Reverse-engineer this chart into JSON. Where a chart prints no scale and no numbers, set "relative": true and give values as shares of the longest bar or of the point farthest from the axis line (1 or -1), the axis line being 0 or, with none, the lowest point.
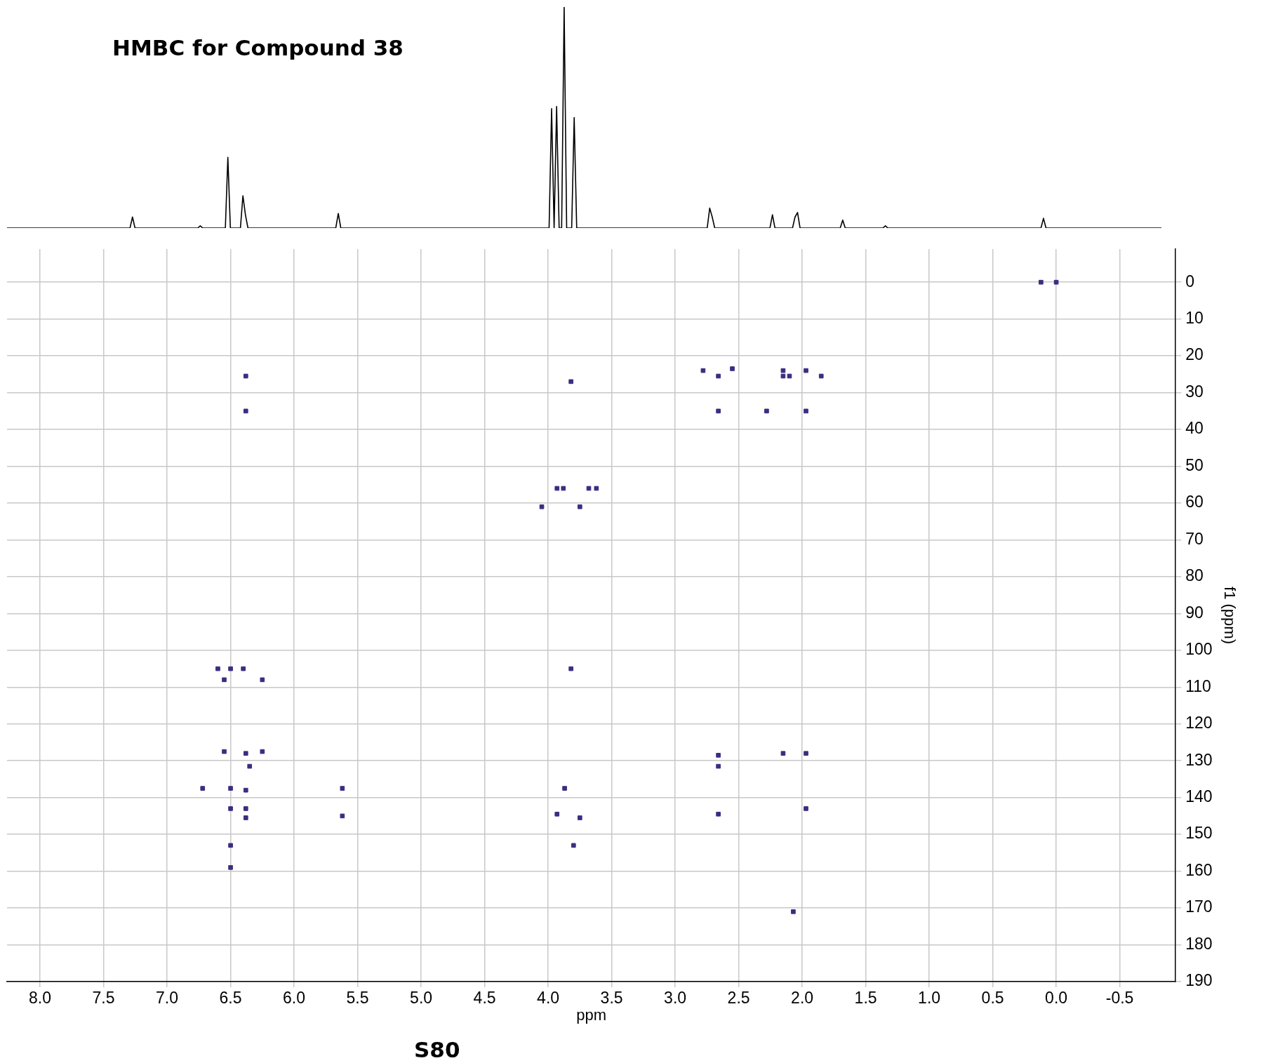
{
  "chart_data": [
    {
      "type": "line",
      "title": "HMBC for Compound 38",
      "relative": true,
      "grid": false,
      "legend": false,
      "marker": "none",
      "color": "#000000",
      "categories": [
        null,
        null,
        null,
        null,
        null,
        null,
        null,
        null,
        null,
        null,
        null,
        null,
        null,
        null,
        null,
        null,
        null,
        null,
        null,
        null,
        null,
        null,
        null,
        null,
        null,
        null,
        null,
        null,
        null,
        null,
        null,
        null,
        null,
        null,
        null,
        null,
        null,
        null,
        null,
        null,
        null,
        null,
        null,
        null,
        null,
        null,
        null,
        null,
        null,
        null,
        null,
        null,
        null,
        null,
        null,
        null,
        null,
        null,
        null,
        null,
        null,
        null,
        null,
        null,
        null,
        null,
        null,
        null,
        null,
        null,
        null,
        null,
        null,
        null,
        null,
        null,
        null,
        null,
        null,
        null,
        null,
        null,
        null,
        null,
        null,
        null,
        null,
        null,
        null,
        null,
        null,
        null,
        null,
        null,
        null,
        null,
        null,
        null,
        null,
        null,
        null,
        null,
        null,
        null,
        null,
        null,
        null,
        null,
        null,
        null,
        null,
        null,
        null,
        null,
        null,
        null,
        null,
        null,
        null,
        null,
        null,
        null,
        null,
        null,
        null,
        null,
        null,
        null,
        null,
        null,
        null,
        null,
        null,
        null,
        null,
        null,
        null,
        null,
        null,
        null,
        null,
        null,
        null,
        null,
        null,
        null,
        null,
        null,
        null,
        null,
        null,
        null,
        null,
        null,
        null,
        null,
        null,
        null,
        null,
        null,
        null,
        null,
        null,
        null,
        null,
        null,
        null,
        null,
        null,
        null,
        null,
        null,
        null,
        null,
        null,
        null,
        null,
        null,
        null,
        null,
        null,
        null,
        null,
        null,
        null,
        null,
        null,
        null,
        null,
        null,
        null,
        null,
        null,
        null,
        null,
        null,
        null,
        null,
        null,
        null,
        null,
        null,
        null,
        null,
        null,
        null,
        null,
        null,
        null,
        null,
        null,
        null,
        null,
        null,
        null,
        null,
        null,
        null,
        null,
        null,
        null,
        null,
        null,
        null,
        null,
        null,
        null,
        null,
        null,
        null,
        null,
        null,
        null,
        null,
        null,
        null,
        null,
        null,
        null,
        null,
        null,
        null,
        null,
        null,
        null,
        null,
        null,
        null,
        null,
        null,
        null,
        null,
        null,
        null,
        null,
        null,
        null,
        null,
        null,
        null,
        null,
        null,
        null,
        null,
        null,
        null,
        null,
        null,
        null,
        null,
        null,
        null,
        null,
        null,
        null,
        null,
        null,
        null,
        null,
        null,
        null,
        null,
        null,
        null,
        null,
        null,
        null,
        null,
        null,
        null,
        null,
        null,
        null,
        null,
        null,
        null,
        null,
        null,
        null,
        null,
        null,
        null,
        null,
        null,
        null,
        null,
        null,
        null,
        null,
        null,
        null,
        null,
        null,
        null,
        null,
        null,
        null,
        null,
        null,
        null,
        null,
        null,
        null,
        null,
        null,
        null,
        null,
        null,
        null,
        null,
        null,
        null,
        null,
        null,
        null,
        null,
        null,
        null,
        null,
        null,
        null,
        null,
        null,
        null,
        null,
        null,
        null,
        null,
        null,
        null,
        null,
        null,
        null,
        null,
        null,
        null,
        null,
        null,
        null,
        null,
        null,
        null,
        null,
        null,
        null,
        null,
        null,
        null,
        null,
        null,
        null,
        null,
        null,
        null,
        null,
        null,
        null,
        null,
        null,
        null,
        null,
        null,
        null,
        null,
        null,
        null,
        null,
        null,
        null,
        null,
        null,
        null,
        null,
        null,
        null,
        null,
        null,
        null,
        null,
        null,
        null,
        null,
        null,
        null,
        null,
        null,
        null,
        null,
        null,
        null,
        null,
        null,
        null,
        null,
        null,
        null,
        null,
        null,
        null,
        null,
        null,
        null,
        null,
        null,
        null,
        null,
        null,
        null,
        null,
        null,
        null,
        null,
        null,
        null,
        null,
        null,
        null,
        null,
        null,
        null,
        null,
        null,
        null,
        null,
        null,
        null,
        null,
        null,
        null,
        null,
        null,
        null,
        null,
        null,
        null,
        null,
        null,
        null,
        null,
        null,
        null
      ],
      "values": [
        0,
        0,
        0,
        0,
        0,
        0,
        0,
        0,
        0,
        0,
        0,
        0,
        0,
        0,
        0,
        0,
        0,
        0,
        0,
        0,
        0,
        0,
        0,
        0,
        0,
        0,
        0,
        0,
        0,
        0,
        0,
        0,
        0,
        0,
        0,
        0,
        0,
        0,
        0,
        0,
        0,
        0,
        0,
        0,
        0,
        0,
        0,
        0,
        0,
        0,
        0.05,
        0,
        0,
        0,
        0,
        0,
        0,
        0,
        0,
        0,
        0,
        0,
        0,
        0,
        0,
        0,
        0,
        0,
        0,
        0,
        0,
        0,
        0,
        0,
        0,
        0,
        0,
        0.01,
        0,
        0,
        0,
        0,
        0,
        0,
        0,
        0,
        0,
        0,
        0.32,
        0,
        0,
        0,
        0,
        0,
        0.146,
        0.06,
        0,
        0,
        0,
        0,
        0,
        0,
        0,
        0,
        0,
        0,
        0,
        0,
        0,
        0,
        0,
        0,
        0,
        0,
        0,
        0,
        0,
        0,
        0,
        0,
        0,
        0,
        0,
        0,
        0,
        0,
        0,
        0,
        0,
        0,
        0,
        0,
        0.066,
        0,
        0,
        0,
        0,
        0,
        0,
        0,
        0,
        0,
        0,
        0,
        0,
        0,
        0,
        0,
        0,
        0,
        0,
        0,
        0,
        0,
        0,
        0,
        0,
        0,
        0,
        0,
        0,
        0,
        0,
        0,
        0,
        0,
        0,
        0,
        0,
        0,
        0,
        0,
        0,
        0,
        0,
        0,
        0,
        0,
        0,
        0,
        0,
        0,
        0,
        0,
        0,
        0,
        0,
        0,
        0,
        0,
        0,
        0,
        0,
        0,
        0,
        0,
        0,
        0,
        0,
        0,
        0,
        0,
        0,
        0,
        0,
        0,
        0,
        0,
        0,
        0,
        0,
        0,
        0,
        0,
        0,
        0,
        0,
        0.54,
        0,
        0.55,
        0,
        0,
        1,
        0,
        0,
        0,
        0.5,
        0,
        0,
        0,
        0,
        0,
        0,
        0,
        0,
        0,
        0,
        0,
        0,
        0,
        0,
        0,
        0,
        0,
        0,
        0,
        0,
        0,
        0,
        0,
        0,
        0,
        0,
        0,
        0,
        0,
        0,
        0,
        0,
        0,
        0,
        0,
        0,
        0,
        0,
        0,
        0,
        0,
        0,
        0,
        0,
        0,
        0,
        0,
        0,
        0,
        0,
        0,
        0,
        0,
        0.09,
        0.05,
        0,
        0,
        0,
        0,
        0,
        0,
        0,
        0,
        0,
        0,
        0,
        0,
        0,
        0,
        0,
        0,
        0,
        0,
        0,
        0,
        0,
        0,
        0,
        0.06,
        0,
        0,
        0,
        0,
        0,
        0,
        0,
        0,
        0.05,
        0.07,
        0,
        0,
        0,
        0,
        0,
        0,
        0,
        0,
        0,
        0,
        0,
        0,
        0,
        0,
        0,
        0,
        0,
        0.036,
        0,
        0,
        0,
        0,
        0,
        0,
        0,
        0,
        0,
        0,
        0,
        0,
        0,
        0,
        0,
        0,
        0.01,
        0,
        0,
        0,
        0,
        0,
        0,
        0,
        0,
        0,
        0,
        0,
        0,
        0,
        0,
        0,
        0,
        0,
        0,
        0,
        0,
        0,
        0,
        0,
        0,
        0,
        0,
        0,
        0,
        0,
        0,
        0,
        0,
        0,
        0,
        0,
        0,
        0,
        0,
        0,
        0,
        0,
        0,
        0,
        0,
        0,
        0,
        0,
        0,
        0,
        0,
        0,
        0,
        0,
        0,
        0,
        0,
        0,
        0,
        0,
        0,
        0,
        0,
        0.044,
        0,
        0,
        0,
        0,
        0,
        0,
        0,
        0,
        0,
        0,
        0,
        0,
        0,
        0,
        0,
        0,
        0,
        0,
        0,
        0,
        0,
        0,
        0,
        0,
        0,
        0,
        0,
        0,
        0,
        0,
        0,
        0,
        0,
        0,
        0,
        0,
        0,
        0,
        0,
        0,
        0,
        0,
        0,
        0,
        0,
        0,
        0
      ]
    },
    {
      "type": "scatter",
      "xlabel": "ppm",
      "ylabel": "f1 (ppm)",
      "annotations": [
        "S80"
      ],
      "grid": true,
      "legend": false,
      "marker": "square",
      "color": "#3b2d80",
      "xlim": [
        8.26,
        -0.94
      ],
      "xticks": [
        {
          "value": 8,
          "label": "8.0"
        },
        {
          "value": 7.5,
          "label": "7.5"
        },
        {
          "value": 7,
          "label": "7.0"
        },
        {
          "value": 6.5,
          "label": "6.5"
        },
        {
          "value": 6,
          "label": "6.0"
        },
        {
          "value": 5.5,
          "label": "5.5"
        },
        {
          "value": 5,
          "label": "5.0"
        },
        {
          "value": 4.5,
          "label": "4.5"
        },
        {
          "value": 4,
          "label": "4.0"
        },
        {
          "value": 3.5,
          "label": "3.5"
        },
        {
          "value": 3,
          "label": "3.0"
        },
        {
          "value": 2.5,
          "label": "2.5"
        },
        {
          "value": 2,
          "label": "2.0"
        },
        {
          "value": 1.5,
          "label": "1.5"
        },
        {
          "value": 1,
          "label": "1.0"
        },
        {
          "value": 0.5,
          "label": "0.5"
        },
        {
          "value": 0,
          "label": "0.0"
        },
        {
          "value": -0.5,
          "label": "-0.5"
        }
      ],
      "ylim": [
        190,
        -9
      ],
      "yticks": [
        0,
        10,
        20,
        30,
        40,
        50,
        60,
        70,
        80,
        90,
        100,
        110,
        120,
        130,
        140,
        150,
        160,
        170,
        180,
        190
      ],
      "x": [
        6.38,
        6.38,
        2.66,
        2.66,
        2.78,
        2.55,
        2.15,
        2.15,
        2.1,
        1.97,
        1.85,
        2.28,
        1.97,
        3.82,
        3.93,
        3.88,
        3.68,
        3.62,
        4.05,
        3.75,
        6.5,
        6.6,
        6.4,
        6.55,
        6.25,
        3.82,
        6.55,
        6.38,
        6.25,
        6.35,
        6.72,
        6.5,
        6.38,
        5.62,
        6.5,
        6.38,
        6.38,
        5.62,
        6.5,
        6.5,
        3.87,
        3.93,
        3.75,
        3.8,
        2.66,
        2.66,
        2.66,
        2.15,
        1.97,
        1.97,
        2.07,
        0.12,
        0
      ],
      "values": [
        25.5,
        35,
        25.5,
        35,
        24,
        23.5,
        24,
        25.5,
        25.5,
        24,
        25.5,
        35,
        35,
        27,
        56,
        56,
        56,
        56,
        61,
        61,
        105,
        105,
        105,
        108,
        108,
        105,
        127.5,
        128,
        127.5,
        131.5,
        137.5,
        137.5,
        138,
        137.5,
        143,
        143,
        145.5,
        145,
        153,
        159,
        137.5,
        144.5,
        145.5,
        153,
        128.5,
        131.5,
        144.5,
        128,
        128,
        143,
        171,
        0,
        0
      ]
    }
  ]
}
